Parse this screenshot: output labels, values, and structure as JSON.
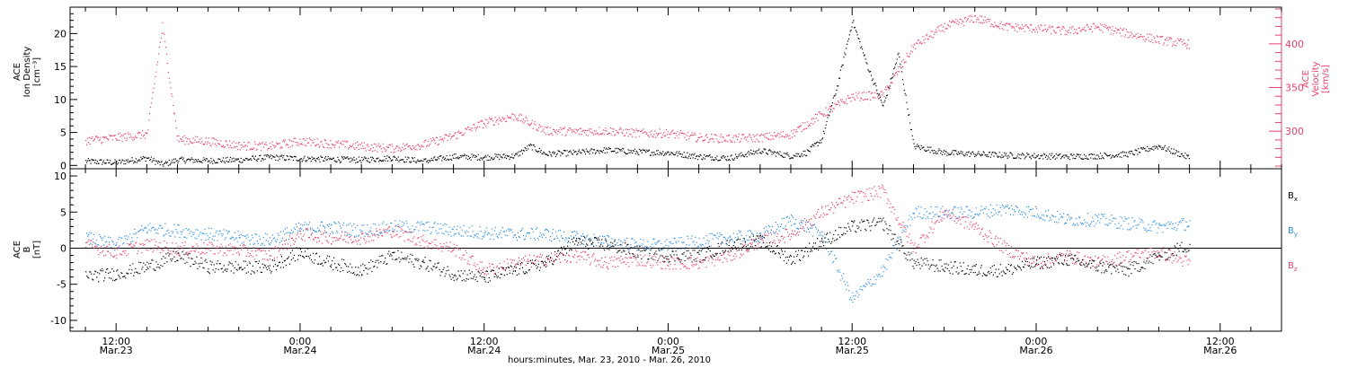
{
  "chart_data": [
    {
      "type": "scatter",
      "panel": "top",
      "title": "",
      "ylabel_left": [
        "ACE",
        "Ion Density",
        "[cm⁻³]"
      ],
      "ylabel_right": [
        "ACE",
        "Velocity",
        "[km/s]"
      ],
      "ylim_left": [
        -0.5,
        24
      ],
      "ylim_right": [
        257,
        442
      ],
      "yticks_left": [
        0,
        5,
        10,
        15,
        20
      ],
      "yticks_right": [
        300,
        350,
        400
      ],
      "series": [
        {
          "name": "Ion Density",
          "axis": "left",
          "color": "#000000",
          "points": [
            [
              "2010-03-23T10:00",
              0.7
            ],
            [
              "2010-03-23T12:00",
              0.5
            ],
            [
              "2010-03-23T14:00",
              1.2
            ],
            [
              "2010-03-23T15:00",
              0.2
            ],
            [
              "2010-03-23T16:00",
              0.9
            ],
            [
              "2010-03-23T18:00",
              0.8
            ],
            [
              "2010-03-23T20:00",
              0.9
            ],
            [
              "2010-03-23T22:00",
              1.3
            ],
            [
              "2010-03-24T00:00",
              1.1
            ],
            [
              "2010-03-24T02:00",
              1.0
            ],
            [
              "2010-03-24T04:00",
              0.9
            ],
            [
              "2010-03-24T06:00",
              1.2
            ],
            [
              "2010-03-24T08:00",
              0.7
            ],
            [
              "2010-03-24T10:00",
              1.4
            ],
            [
              "2010-03-24T12:00",
              1.3
            ],
            [
              "2010-03-24T14:00",
              1.5
            ],
            [
              "2010-03-24T15:00",
              3.0
            ],
            [
              "2010-03-24T16:00",
              1.8
            ],
            [
              "2010-03-24T18:00",
              2.0
            ],
            [
              "2010-03-24T20:00",
              2.4
            ],
            [
              "2010-03-24T22:00",
              2.1
            ],
            [
              "2010-03-25T00:00",
              2.0
            ],
            [
              "2010-03-25T02:00",
              1.4
            ],
            [
              "2010-03-25T04:00",
              1.2
            ],
            [
              "2010-03-25T06:00",
              2.3
            ],
            [
              "2010-03-25T08:00",
              1.5
            ],
            [
              "2010-03-25T09:00",
              2.0
            ],
            [
              "2010-03-25T10:00",
              4.0
            ],
            [
              "2010-03-25T11:00",
              12.0
            ],
            [
              "2010-03-25T12:00",
              22.0
            ],
            [
              "2010-03-25T13:00",
              15.0
            ],
            [
              "2010-03-25T14:00",
              9.0
            ],
            [
              "2010-03-25T15:00",
              17.0
            ],
            [
              "2010-03-25T16:00",
              3.0
            ],
            [
              "2010-03-25T18:00",
              2.0
            ],
            [
              "2010-03-25T20:00",
              1.8
            ],
            [
              "2010-03-25T22:00",
              1.6
            ],
            [
              "2010-03-26T00:00",
              1.5
            ],
            [
              "2010-03-26T02:00",
              1.4
            ],
            [
              "2010-03-26T04:00",
              1.5
            ],
            [
              "2010-03-26T06:00",
              1.8
            ],
            [
              "2010-03-26T08:00",
              3.0
            ],
            [
              "2010-03-26T10:00",
              1.2
            ]
          ]
        },
        {
          "name": "Velocity",
          "axis": "right",
          "color": "#e8426a",
          "points": [
            [
              "2010-03-23T10:00",
              290
            ],
            [
              "2010-03-23T12:00",
              293
            ],
            [
              "2010-03-23T14:00",
              297
            ],
            [
              "2010-03-23T15:00",
              421
            ],
            [
              "2010-03-23T16:00",
              291
            ],
            [
              "2010-03-23T18:00",
              289
            ],
            [
              "2010-03-23T20:00",
              284
            ],
            [
              "2010-03-23T22:00",
              283
            ],
            [
              "2010-03-24T00:00",
              289
            ],
            [
              "2010-03-24T02:00",
              286
            ],
            [
              "2010-03-24T04:00",
              283
            ],
            [
              "2010-03-24T06:00",
              281
            ],
            [
              "2010-03-24T08:00",
              285
            ],
            [
              "2010-03-24T10:00",
              295
            ],
            [
              "2010-03-24T12:00",
              310
            ],
            [
              "2010-03-24T14:00",
              318
            ],
            [
              "2010-03-24T16:00",
              301
            ],
            [
              "2010-03-24T18:00",
              300
            ],
            [
              "2010-03-24T20:00",
              301
            ],
            [
              "2010-03-24T22:00",
              298
            ],
            [
              "2010-03-25T00:00",
              298
            ],
            [
              "2010-03-25T02:00",
              293
            ],
            [
              "2010-03-25T04:00",
              292
            ],
            [
              "2010-03-25T06:00",
              293
            ],
            [
              "2010-03-25T08:00",
              297
            ],
            [
              "2010-03-25T10:00",
              320
            ],
            [
              "2010-03-25T12:00",
              340
            ],
            [
              "2010-03-25T14:00",
              342
            ],
            [
              "2010-03-25T16:00",
              398
            ],
            [
              "2010-03-25T18:00",
              420
            ],
            [
              "2010-03-25T20:00",
              430
            ],
            [
              "2010-03-25T22:00",
              420
            ],
            [
              "2010-03-26T00:00",
              418
            ],
            [
              "2010-03-26T02:00",
              415
            ],
            [
              "2010-03-26T04:00",
              420
            ],
            [
              "2010-03-26T06:00",
              412
            ],
            [
              "2010-03-26T08:00",
              405
            ],
            [
              "2010-03-26T10:00",
              400
            ]
          ]
        }
      ]
    },
    {
      "type": "scatter",
      "panel": "bottom",
      "title": "",
      "ylabel": [
        "ACE",
        "B",
        "[nT]"
      ],
      "ylim": [
        -11.5,
        11
      ],
      "yticks": [
        -10,
        -5,
        0,
        5,
        10
      ],
      "zero_line": true,
      "series": [
        {
          "name": "Bx",
          "label_text": "B",
          "label_sub": "x",
          "color": "#000000",
          "points": [
            [
              "2010-03-23T10:00",
              -3.8
            ],
            [
              "2010-03-23T12:00",
              -3.5
            ],
            [
              "2010-03-23T14:00",
              -2.5
            ],
            [
              "2010-03-23T16:00",
              -1.0
            ],
            [
              "2010-03-23T18:00",
              -2.5
            ],
            [
              "2010-03-23T20:00",
              -2.6
            ],
            [
              "2010-03-23T22:00",
              -2.6
            ],
            [
              "2010-03-24T00:00",
              -0.5
            ],
            [
              "2010-03-24T02:00",
              -2.0
            ],
            [
              "2010-03-24T04:00",
              -3.0
            ],
            [
              "2010-03-24T06:00",
              -1.0
            ],
            [
              "2010-03-24T08:00",
              -2.0
            ],
            [
              "2010-03-24T10:00",
              -3.5
            ],
            [
              "2010-03-24T12:00",
              -4.0
            ],
            [
              "2010-03-24T14:00",
              -3.0
            ],
            [
              "2010-03-24T16:00",
              -2.0
            ],
            [
              "2010-03-24T18:00",
              1.0
            ],
            [
              "2010-03-24T20:00",
              0.5
            ],
            [
              "2010-03-24T22:00",
              -0.5
            ],
            [
              "2010-03-25T00:00",
              -1.0
            ],
            [
              "2010-03-25T02:00",
              -1.0
            ],
            [
              "2010-03-25T04:00",
              0.5
            ],
            [
              "2010-03-25T06:00",
              1.0
            ],
            [
              "2010-03-25T08:00",
              -1.5
            ],
            [
              "2010-03-25T10:00",
              1.0
            ],
            [
              "2010-03-25T12:00",
              3.0
            ],
            [
              "2010-03-25T14:00",
              3.5
            ],
            [
              "2010-03-25T16:00",
              -2.0
            ],
            [
              "2010-03-25T18:00",
              -2.5
            ],
            [
              "2010-03-25T20:00",
              -3.0
            ],
            [
              "2010-03-25T22:00",
              -3.0
            ],
            [
              "2010-03-26T00:00",
              -2.0
            ],
            [
              "2010-03-26T02:00",
              -1.5
            ],
            [
              "2010-03-26T04:00",
              -2.5
            ],
            [
              "2010-03-26T06:00",
              -3.0
            ],
            [
              "2010-03-26T08:00",
              -1.0
            ],
            [
              "2010-03-26T10:00",
              0.5
            ]
          ]
        },
        {
          "name": "By",
          "label_text": "B",
          "label_sub": "y",
          "color": "#3090e0",
          "points": [
            [
              "2010-03-23T10:00",
              1.5
            ],
            [
              "2010-03-23T12:00",
              0.5
            ],
            [
              "2010-03-23T14:00",
              2.8
            ],
            [
              "2010-03-23T16:00",
              2.5
            ],
            [
              "2010-03-23T18:00",
              2.0
            ],
            [
              "2010-03-23T20:00",
              1.5
            ],
            [
              "2010-03-23T22:00",
              1.2
            ],
            [
              "2010-03-24T00:00",
              2.8
            ],
            [
              "2010-03-24T02:00",
              3.0
            ],
            [
              "2010-03-24T04:00",
              2.5
            ],
            [
              "2010-03-24T06:00",
              3.0
            ],
            [
              "2010-03-24T08:00",
              3.0
            ],
            [
              "2010-03-24T10:00",
              2.5
            ],
            [
              "2010-03-24T12:00",
              2.2
            ],
            [
              "2010-03-24T14:00",
              2.0
            ],
            [
              "2010-03-24T16:00",
              2.0
            ],
            [
              "2010-03-24T18:00",
              1.5
            ],
            [
              "2010-03-24T20:00",
              1.0
            ],
            [
              "2010-03-24T22:00",
              0.5
            ],
            [
              "2010-03-25T00:00",
              0.5
            ],
            [
              "2010-03-25T02:00",
              1.0
            ],
            [
              "2010-03-25T04:00",
              1.5
            ],
            [
              "2010-03-25T06:00",
              1.8
            ],
            [
              "2010-03-25T08:00",
              4.0
            ],
            [
              "2010-03-25T10:00",
              2.0
            ],
            [
              "2010-03-25T12:00",
              -7.0
            ],
            [
              "2010-03-25T14:00",
              -3.0
            ],
            [
              "2010-03-25T16:00",
              5.0
            ],
            [
              "2010-03-25T18:00",
              5.0
            ],
            [
              "2010-03-25T20:00",
              5.0
            ],
            [
              "2010-03-25T22:00",
              5.5
            ],
            [
              "2010-03-26T00:00",
              5.0
            ],
            [
              "2010-03-26T02:00",
              4.0
            ],
            [
              "2010-03-26T04:00",
              4.0
            ],
            [
              "2010-03-26T06:00",
              3.5
            ],
            [
              "2010-03-26T08:00",
              3.0
            ],
            [
              "2010-03-26T10:00",
              3.5
            ]
          ]
        },
        {
          "name": "Bz",
          "label_text": "B",
          "label_sub": "z",
          "color": "#e8426a",
          "points": [
            [
              "2010-03-23T10:00",
              0.5
            ],
            [
              "2010-03-23T12:00",
              -0.5
            ],
            [
              "2010-03-23T14:00",
              0.5
            ],
            [
              "2010-03-23T16:00",
              0.0
            ],
            [
              "2010-03-23T18:00",
              0.0
            ],
            [
              "2010-03-23T20:00",
              -0.2
            ],
            [
              "2010-03-23T22:00",
              -1.0
            ],
            [
              "2010-03-24T00:00",
              2.0
            ],
            [
              "2010-03-24T02:00",
              1.5
            ],
            [
              "2010-03-24T04:00",
              1.5
            ],
            [
              "2010-03-24T06:00",
              2.5
            ],
            [
              "2010-03-24T08:00",
              1.0
            ],
            [
              "2010-03-24T10:00",
              0.0
            ],
            [
              "2010-03-24T12:00",
              -3.0
            ],
            [
              "2010-03-24T14:00",
              -2.0
            ],
            [
              "2010-03-24T16:00",
              -1.5
            ],
            [
              "2010-03-24T18:00",
              -1.0
            ],
            [
              "2010-03-24T20:00",
              -2.0
            ],
            [
              "2010-03-24T22:00",
              -1.5
            ],
            [
              "2010-03-25T00:00",
              -2.0
            ],
            [
              "2010-03-25T02:00",
              -2.0
            ],
            [
              "2010-03-25T04:00",
              -1.0
            ],
            [
              "2010-03-25T06:00",
              1.0
            ],
            [
              "2010-03-25T08:00",
              2.0
            ],
            [
              "2010-03-25T10:00",
              5.0
            ],
            [
              "2010-03-25T12:00",
              7.0
            ],
            [
              "2010-03-25T14:00",
              8.0
            ],
            [
              "2010-03-25T16:00",
              0.0
            ],
            [
              "2010-03-25T18:00",
              5.0
            ],
            [
              "2010-03-25T20:00",
              3.0
            ],
            [
              "2010-03-25T22:00",
              0.0
            ],
            [
              "2010-03-26T00:00",
              -2.0
            ],
            [
              "2010-03-26T02:00",
              -1.0
            ],
            [
              "2010-03-26T04:00",
              -2.0
            ],
            [
              "2010-03-26T06:00",
              -1.0
            ],
            [
              "2010-03-26T08:00",
              -0.5
            ],
            [
              "2010-03-26T10:00",
              -2.0
            ]
          ]
        }
      ]
    }
  ],
  "x_axis": {
    "range": [
      "2010-03-23T09:00",
      "2010-03-26T16:00"
    ],
    "major_ticks": [
      {
        "time": "2010-03-23T12:00",
        "hm": "12:00",
        "date": "Mar.23"
      },
      {
        "time": "2010-03-24T00:00",
        "hm": "0:00",
        "date": "Mar.24"
      },
      {
        "time": "2010-03-24T12:00",
        "hm": "12:00",
        "date": "Mar.24"
      },
      {
        "time": "2010-03-25T00:00",
        "hm": "0:00",
        "date": "Mar.25"
      },
      {
        "time": "2010-03-25T12:00",
        "hm": "12:00",
        "date": "Mar.25"
      },
      {
        "time": "2010-03-26T00:00",
        "hm": "0:00",
        "date": "Mar.26"
      },
      {
        "time": "2010-03-26T12:00",
        "hm": "12:00",
        "date": "Mar.26"
      }
    ],
    "minor_tick_hours": 2,
    "xlabel": "hours:minutes, Mar. 23, 2010 - Mar. 26, 2010"
  }
}
